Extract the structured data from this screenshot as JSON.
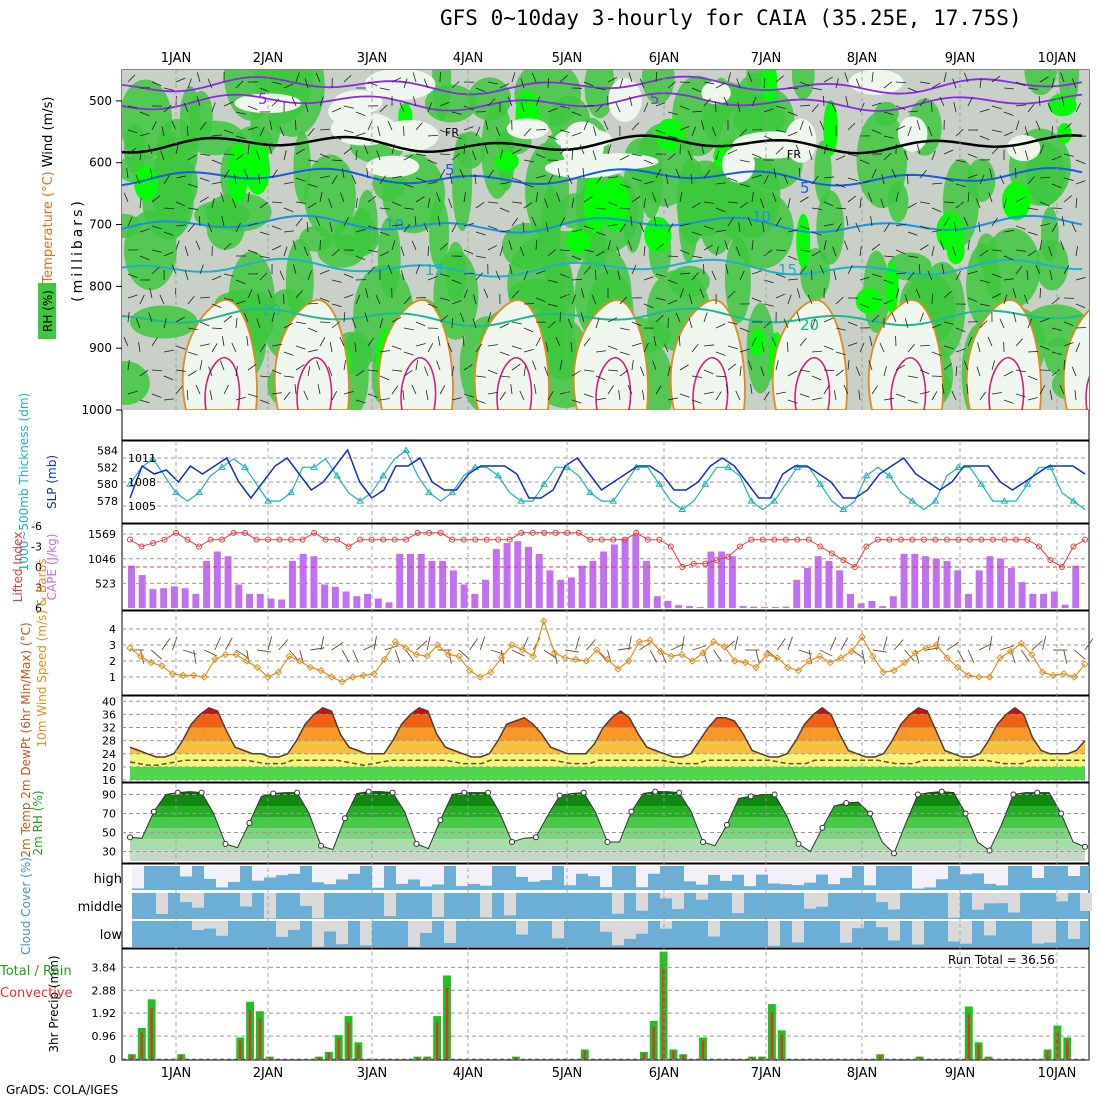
{
  "title": "GFS 0~10day 3-hourly for CAIA (35.25E, 17.75S)",
  "credit": "GrADS: COLA/IGES",
  "run_total": "Run Total = 36.56",
  "colors": {
    "rh_green": "#3ec83e",
    "rh_bright": "#00ff00",
    "rh_gray": "#c8d0c8",
    "temp_purple": "#8a2be2",
    "sounding_blue": "#1a5ce0",
    "cyan": "#20b0c0",
    "cape_purple": "#c070f0",
    "li_red": "#e04040",
    "wind_orange": "#e09020",
    "precip_green": "#20c020",
    "precip_red": "#e03030",
    "cloud_blue": "#6baed6",
    "cloud_gray": "#d9d9d9"
  },
  "x_ticks": [
    "1JAN",
    "2JAN",
    "3JAN",
    "4JAN",
    "5JAN",
    "6JAN",
    "7JAN",
    "8JAN",
    "9JAN",
    "10JAN"
  ],
  "chart_data": [
    {
      "type": "heatmap",
      "name": "pressure-cross-section",
      "ylabel": "(millibars)",
      "side_labels": [
        "Wind (m/s)",
        "Temperature (°C)",
        "RH (%)"
      ],
      "y_ticks": [
        500,
        600,
        700,
        800,
        900,
        1000
      ],
      "ylim": [
        1000,
        450
      ],
      "isotherm_labels": [
        "5",
        "5",
        "FR",
        "FR",
        "5",
        "5",
        "10",
        "10",
        "15",
        "15",
        "20",
        "20"
      ]
    },
    {
      "type": "line",
      "name": "slp-thickness",
      "ylabel_left": "1000~500mb Thickness (dm)",
      "ylabel_right": "SLP (mb)",
      "left_ticks": [
        578,
        580,
        582,
        584
      ],
      "right_ticks": [
        1005,
        1008,
        1011
      ],
      "series": [
        {
          "name": "SLP (mb)",
          "values": [
            1006,
            1010,
            1009,
            1009.5,
            1008,
            1010,
            1009,
            1010,
            1011,
            1008,
            1006,
            1008,
            1010,
            1011,
            1009,
            1007,
            1008,
            1010,
            1012,
            1008,
            1006,
            1007,
            1010,
            1010,
            1011,
            1008,
            1007,
            1007,
            1009,
            1010,
            1010,
            1010,
            1009,
            1006,
            1006,
            1007,
            1010,
            1011,
            1009,
            1007,
            1008,
            1009,
            1010,
            1010,
            1009,
            1007,
            1007,
            1008,
            1010,
            1011,
            1010,
            1008,
            1006,
            1006,
            1009,
            1010,
            1010,
            1009,
            1008,
            1006,
            1006,
            1007,
            1009,
            1010,
            1011,
            1009,
            1008,
            1007,
            1008,
            1010,
            1010,
            1010,
            1008,
            1007,
            1008,
            1009,
            1010,
            1010,
            1010,
            1009
          ]
        },
        {
          "name": "1000~500mb Thickness (dm)",
          "values": [
            580,
            582,
            583,
            581,
            579,
            578,
            579,
            581,
            582,
            583,
            582,
            580,
            578,
            578,
            579,
            582,
            582,
            583,
            581,
            579,
            578,
            579,
            581,
            583,
            584,
            581,
            579,
            578,
            579,
            581,
            582,
            582,
            581,
            579,
            578,
            578,
            580,
            582,
            582,
            581,
            579,
            578,
            578,
            580,
            582,
            582,
            580,
            578,
            577,
            578,
            580,
            582,
            582,
            581,
            578,
            577,
            578,
            580,
            582,
            582,
            580,
            578,
            577,
            578,
            581,
            582,
            581,
            579,
            578,
            577,
            578,
            581,
            582,
            582,
            580,
            578,
            578,
            578,
            580,
            582,
            582,
            579,
            578,
            577
          ]
        }
      ]
    },
    {
      "type": "bar",
      "name": "cape-lifted-index",
      "ylabel_left": "Lifted Index",
      "ylabel_right": "CAPE (J/kg)",
      "left_ticks": [
        -6,
        -3,
        0,
        3,
        6
      ],
      "right_ticks": [
        523,
        1046,
        1569
      ],
      "cape_values": [
        900,
        700,
        400,
        420,
        460,
        420,
        300,
        1000,
        1200,
        1100,
        500,
        300,
        300,
        200,
        180,
        1000,
        1150,
        1100,
        500,
        450,
        350,
        250,
        300,
        200,
        120,
        1150,
        1150,
        1150,
        1000,
        1000,
        800,
        500,
        300,
        600,
        1250,
        1380,
        1420,
        1300,
        1150,
        800,
        600,
        650,
        900,
        1000,
        1200,
        1350,
        1480,
        1550,
        1000,
        250,
        150,
        60,
        40,
        20,
        1200,
        1200,
        1100,
        40,
        30,
        20,
        20,
        30,
        600,
        850,
        1100,
        1000,
        800,
        300,
        100,
        150,
        40,
        250,
        1150,
        1150,
        1100,
        1050,
        1000,
        800,
        300,
        800,
        1100,
        1050,
        850,
        550,
        300,
        300,
        350,
        70,
        900
      ],
      "li_values": [
        -4,
        -3,
        -3.5,
        -4,
        -5,
        -4,
        -3,
        -4,
        -4,
        -5,
        -5,
        -4,
        -4,
        -4,
        -4,
        -4,
        -5,
        -4,
        -4,
        -3,
        -4,
        -4,
        -4,
        -4,
        -4,
        -5,
        -5,
        -5,
        -4,
        -4,
        -4,
        -4,
        -4,
        -4,
        -5,
        -5,
        -5,
        -5,
        -5,
        -5,
        -4,
        -4,
        -4,
        -4,
        -5,
        -4,
        -4,
        -3,
        0,
        -0.5,
        -0.5,
        -1,
        -1.5,
        -3,
        -4,
        -4,
        -4,
        -4,
        -4,
        -4,
        -3,
        -2,
        -1,
        0,
        -3,
        -4,
        -4,
        -4,
        -4,
        -4,
        -4,
        -4,
        -4,
        -4,
        -4,
        -4,
        -4,
        -4,
        -4,
        -3,
        -1,
        0,
        -3,
        -4
      ]
    },
    {
      "type": "line",
      "name": "wind10m",
      "ylabel": "10m Wind Speed (m/s) & Barbs",
      "y_ticks": [
        1,
        2,
        3,
        4
      ],
      "ylim": [
        0,
        5
      ],
      "values": [
        2.8,
        2.3,
        1.9,
        1.7,
        1.2,
        1.1,
        1.1,
        1.0,
        2.1,
        2.4,
        2.4,
        2.0,
        1.6,
        1.0,
        1.3,
        2.3,
        2.0,
        1.6,
        1.4,
        1.0,
        0.7,
        1.0,
        1.1,
        1.2,
        2.1,
        3.2,
        2.8,
        2.4,
        2.3,
        3.0,
        2.4,
        2.3,
        1.4,
        1.0,
        1.3,
        2.2,
        3.0,
        2.7,
        2.3,
        4.5,
        2.5,
        2.2,
        2.1,
        2.0,
        2.7,
        2.1,
        1.5,
        2.0,
        3.2,
        3.3,
        2.6,
        2.3,
        2.4,
        2.0,
        2.5,
        3.2,
        2.9,
        2.0,
        1.9,
        1.6,
        2.4,
        2.2,
        1.6,
        1.4,
        2.0,
        2.3,
        1.9,
        2.2,
        2.6,
        3.5,
        2.3,
        1.3,
        1.4,
        1.9,
        2.5,
        2.8,
        3.0,
        2.2,
        1.6,
        1.1,
        1.0,
        1.0,
        2.2,
        2.6,
        3.1,
        2.4,
        1.3,
        1.1,
        1.2,
        1.0,
        1.8
      ]
    },
    {
      "type": "area",
      "name": "temperature",
      "ylabel": "2m Temp 2m DewPt (6hr Min/Max) (°C)",
      "y_ticks": [
        16,
        20,
        24,
        28,
        32,
        36,
        40
      ],
      "ylim": [
        16,
        41
      ],
      "temp_values": [
        26,
        25,
        24,
        23,
        23,
        24,
        28,
        33,
        36,
        38,
        37,
        31,
        26,
        25,
        24,
        24,
        23,
        23,
        24,
        28,
        33,
        36,
        38,
        37,
        30,
        26,
        25,
        24,
        24,
        24,
        28,
        33,
        36,
        38,
        37,
        30,
        26,
        25,
        24,
        23,
        23,
        24,
        28,
        33,
        34,
        35,
        33,
        30,
        26,
        25,
        24,
        24,
        24,
        27,
        32,
        35,
        37,
        35,
        30,
        26,
        25,
        24,
        23,
        23,
        24,
        28,
        32,
        35,
        35,
        34,
        30,
        25,
        24,
        23,
        23,
        24,
        28,
        33,
        36,
        38,
        36,
        30,
        25,
        24,
        23,
        23,
        24,
        28,
        33,
        36,
        38,
        37,
        31,
        25,
        24,
        23,
        23,
        24,
        28,
        33,
        36,
        38,
        36,
        29,
        25,
        24,
        24,
        24,
        25,
        28
      ],
      "dew_values": [
        21.5,
        21,
        20.5,
        20.5,
        21,
        21.5,
        22,
        22,
        22,
        22,
        22,
        22,
        22,
        22,
        21.5,
        21,
        21,
        21,
        22,
        22,
        22,
        22,
        22,
        22,
        21.5,
        21,
        20.5,
        21,
        21.5,
        22,
        22,
        22,
        22,
        22,
        22,
        22,
        21.5,
        21,
        21,
        21,
        22,
        22,
        22,
        22,
        22,
        22,
        22,
        22,
        21.5,
        21,
        21,
        21,
        22,
        22,
        22,
        22,
        22,
        22,
        22,
        22,
        21.5,
        21,
        21,
        21,
        22,
        22,
        22,
        22,
        22,
        22,
        22,
        22,
        21.5,
        21,
        21,
        21,
        22,
        22,
        22,
        22,
        22,
        22,
        22,
        22,
        21.5,
        21,
        21,
        21,
        22,
        22,
        22,
        22,
        22,
        22,
        22,
        22,
        21.5,
        21,
        21,
        21,
        22,
        22,
        22,
        22,
        22,
        22,
        22
      ]
    },
    {
      "type": "area",
      "name": "rh2m",
      "ylabel": "2m RH (%)",
      "y_ticks": [
        30,
        50,
        70,
        90
      ],
      "ylim": [
        20,
        100
      ],
      "values": [
        45,
        44,
        72,
        90,
        92,
        93,
        92,
        70,
        38,
        34,
        60,
        88,
        91,
        92,
        92,
        70,
        36,
        32,
        65,
        91,
        93,
        93,
        92,
        72,
        38,
        33,
        63,
        90,
        92,
        92,
        92,
        70,
        40,
        44,
        45,
        68,
        89,
        91,
        92,
        71,
        40,
        40,
        72,
        91,
        93,
        93,
        92,
        72,
        40,
        36,
        58,
        86,
        88,
        90,
        90,
        68,
        38,
        30,
        55,
        78,
        81,
        82,
        70,
        40,
        28,
        60,
        90,
        92,
        93,
        92,
        70,
        40,
        31,
        58,
        90,
        92,
        92,
        92,
        70,
        40,
        35
      ]
    },
    {
      "type": "heatmap",
      "name": "cloud-cover",
      "ylabel": "Cloud Cover (%)",
      "rows": [
        "high",
        "middle",
        "low"
      ]
    },
    {
      "type": "bar",
      "name": "precip",
      "ylabel": "3hr Precip (mm)",
      "side_labels": [
        "Total / Rain",
        "Convective"
      ],
      "y_ticks": [
        0,
        0.96,
        1.92,
        2.88,
        3.84
      ],
      "ylim": [
        0,
        4.4
      ],
      "total_values": [
        0.2,
        1.3,
        2.5,
        0,
        0,
        0.2,
        0,
        0,
        0,
        0,
        0,
        0.9,
        2.4,
        2.0,
        0.1,
        0,
        0,
        0,
        0,
        0.1,
        0.3,
        1.0,
        1.8,
        0.7,
        0,
        0,
        0,
        0,
        0,
        0.1,
        0.1,
        1.8,
        3.5,
        0,
        0,
        0,
        0,
        0,
        0,
        0.1,
        0,
        0,
        0,
        0,
        0,
        0,
        0.4,
        0,
        0,
        0,
        0,
        0,
        0.3,
        1.6,
        4.5,
        0.4,
        0.2,
        0,
        0.9,
        0,
        0,
        0,
        0,
        0.1,
        0.1,
        2.3,
        1.2,
        0,
        0,
        0,
        0,
        0,
        0,
        0,
        0,
        0,
        0.2,
        0,
        0,
        0,
        0.1,
        0,
        0,
        0,
        0,
        2.2,
        0.7,
        0.1,
        0,
        0,
        0,
        0,
        0,
        0.4,
        1.4,
        0.9,
        0
      ]
    }
  ]
}
